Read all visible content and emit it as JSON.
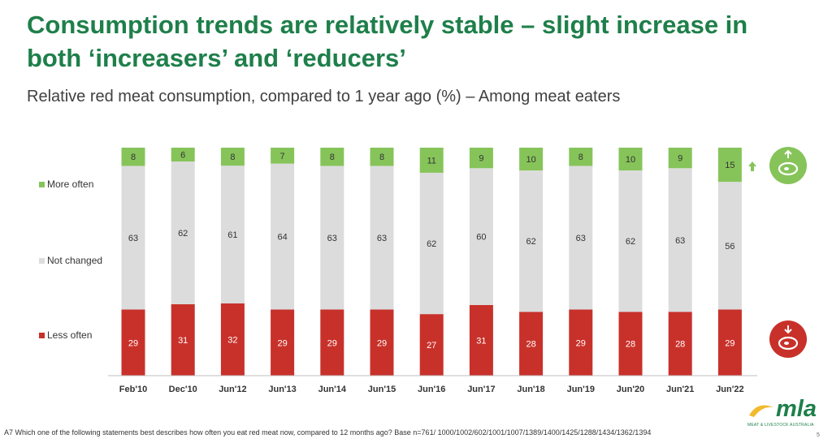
{
  "title": "Consumption trends are relatively stable – slight increase in both ‘increasers’ and ‘reducers’",
  "subtitle": "Relative red meat consumption, compared to 1 year ago (%) – Among meat eaters",
  "footnote": "A7 Which one of the following statements best describes how often you eat red meat now, compared to 12 months ago? Base n=761/ 1000/1002/602/1001/1007/1389/1400/1425/1288/1434/1362/1394",
  "page_number": "5",
  "logo": {
    "text": "mla",
    "subtitle": "MEAT & LIVESTOCK AUSTRALIA"
  },
  "colors": {
    "more_often": "#86c45a",
    "not_changed": "#dcdcdc",
    "less_often": "#c8312a",
    "title": "#1e7f4a"
  },
  "icons": {
    "increase": "meat-up-icon",
    "decrease": "meat-down-icon",
    "arrow": "arrow-up-icon"
  },
  "chart_data": {
    "type": "bar",
    "stacked": true,
    "normalized": true,
    "categories": [
      "Feb'10",
      "Dec'10",
      "Jun'12",
      "Jun'13",
      "Jun'14",
      "Jun'15",
      "Jun'16",
      "Jun'17",
      "Jun'18",
      "Jun'19",
      "Jun'20",
      "Jun'21",
      "Jun'22"
    ],
    "series": [
      {
        "name": "Less often",
        "values": [
          29,
          31,
          32,
          29,
          29,
          29,
          27,
          31,
          28,
          29,
          28,
          28,
          29
        ]
      },
      {
        "name": "Not changed",
        "values": [
          63,
          62,
          61,
          64,
          63,
          63,
          62,
          60,
          62,
          63,
          62,
          63,
          56
        ]
      },
      {
        "name": "More often",
        "values": [
          8,
          6,
          8,
          7,
          8,
          8,
          11,
          9,
          10,
          8,
          10,
          9,
          15
        ]
      }
    ],
    "legend": [
      "More often",
      "Not changed",
      "Less often"
    ],
    "legend_position": "left"
  }
}
